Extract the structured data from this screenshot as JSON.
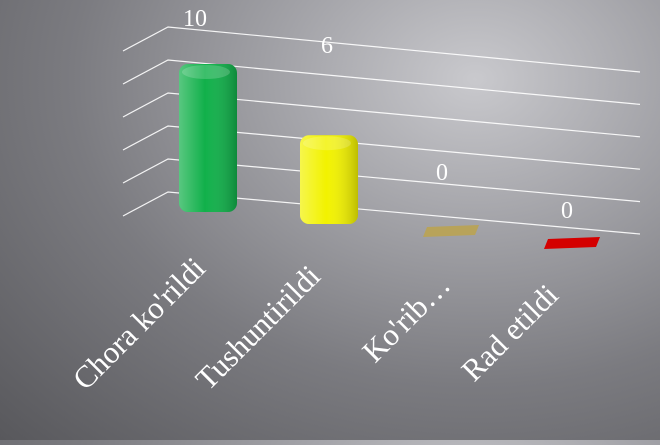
{
  "chart_data": {
    "type": "bar",
    "categories": [
      "Chora ko'rildi",
      "Tushuntirildi",
      "Ko'rib…",
      "Rad etildi"
    ],
    "values": [
      10,
      6,
      0,
      0
    ],
    "colors": [
      "#11b04a",
      "#f2f200",
      "#b8a35a",
      "#d40000"
    ],
    "title": "",
    "xlabel": "",
    "ylabel": "",
    "ylim": [
      0,
      10
    ],
    "grid": true,
    "legend": "none",
    "style": "3d-perspective"
  }
}
